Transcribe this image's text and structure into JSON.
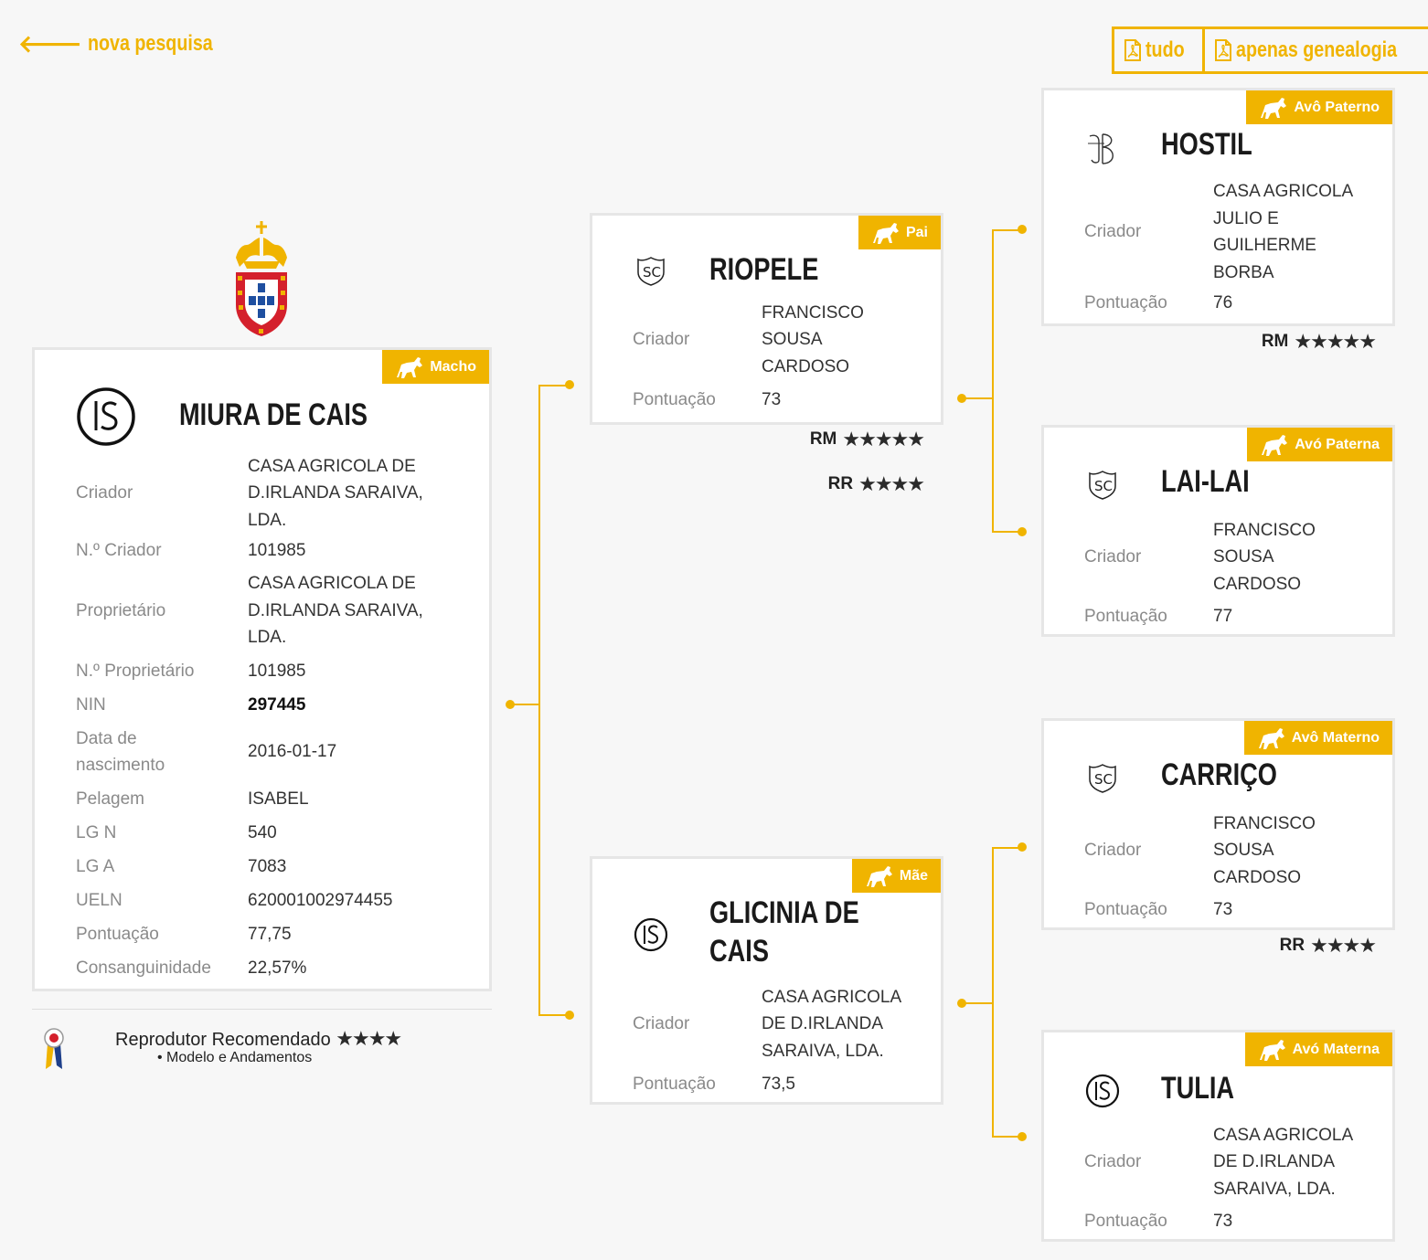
{
  "nav": {
    "back_label": "nova pesquisa"
  },
  "pdf": {
    "all_label": "tudo",
    "genealogy_label": "apenas genealogia"
  },
  "colors": {
    "accent": "#f0b400",
    "card_border": "#e6e6e6",
    "label": "#8a8a8a"
  },
  "main": {
    "badge": "Macho",
    "name": "MIURA DE CAIS",
    "brand_icon": "is-brand-icon",
    "rows": [
      {
        "label": "Criador",
        "value": "CASA AGRICOLA DE D.IRLANDA SARAIVA, LDA."
      },
      {
        "label": "N.º Criador",
        "value": "101985"
      },
      {
        "label": "Proprietário",
        "value": "CASA AGRICOLA DE D.IRLANDA SARAIVA, LDA."
      },
      {
        "label": "N.º Proprietário",
        "value": "101985"
      },
      {
        "label": "NIN",
        "value": "297445"
      },
      {
        "label": "Data de nascimento",
        "value": "2016-01-17"
      },
      {
        "label": "Pelagem",
        "value": "ISABEL"
      },
      {
        "label": "LG N",
        "value": "540"
      },
      {
        "label": "LG A",
        "value": "7083"
      },
      {
        "label": "UELN",
        "value": "620001002974455"
      },
      {
        "label": "Pontuação",
        "value": "77,75"
      },
      {
        "label": "Consanguinidade",
        "value": "22,57%"
      }
    ],
    "recommended_label": "Reprodutor Recomendado",
    "recommended_stars": 4,
    "recommended_item": "Modelo e Andamentos"
  },
  "father": {
    "badge": "Pai",
    "name": "RIOPELE",
    "criador_label": "Criador",
    "criador": "FRANCISCO SOUSA CARDOSO",
    "pontuacao_label": "Pontuação",
    "pontuacao": "73",
    "ratings": [
      {
        "label": "RM",
        "stars": 5
      },
      {
        "label": "RR",
        "stars": 4
      }
    ]
  },
  "mother": {
    "badge": "Mãe",
    "name": "GLICINIA DE CAIS",
    "criador_label": "Criador",
    "criador": "CASA AGRICOLA DE D.IRLANDA SARAIVA, LDA.",
    "pontuacao_label": "Pontuação",
    "pontuacao": "73,5"
  },
  "gf_paternal": {
    "badge": "Avô Paterno",
    "name": "HOSTIL",
    "criador_label": "Criador",
    "criador": "CASA AGRICOLA JULIO E GUILHERME BORBA",
    "pontuacao_label": "Pontuação",
    "pontuacao": "76",
    "rating": {
      "label": "RM",
      "stars": 5
    }
  },
  "gm_paternal": {
    "badge": "Avó Paterna",
    "name": "LAI-LAI",
    "criador_label": "Criador",
    "criador": "FRANCISCO SOUSA CARDOSO",
    "pontuacao_label": "Pontuação",
    "pontuacao": "77"
  },
  "gf_maternal": {
    "badge": "Avô Materno",
    "name": "CARRIÇO",
    "criador_label": "Criador",
    "criador": "FRANCISCO SOUSA CARDOSO",
    "pontuacao_label": "Pontuação",
    "pontuacao": "73",
    "rating": {
      "label": "RR",
      "stars": 4
    }
  },
  "gm_maternal": {
    "badge": "Avó Materna",
    "name": "TULIA",
    "criador_label": "Criador",
    "criador": "CASA AGRICOLA DE D.IRLANDA SARAIVA, LDA.",
    "pontuacao_label": "Pontuação",
    "pontuacao": "73"
  }
}
